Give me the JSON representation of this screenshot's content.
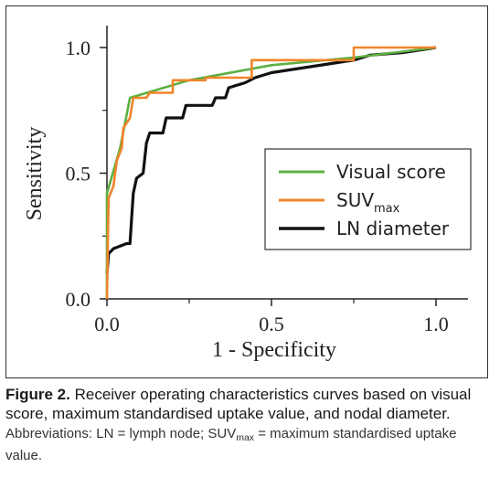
{
  "chart_data": {
    "type": "line",
    "xlabel": "1 - Specificity",
    "ylabel": "Sensitivity",
    "xlim": [
      0.0,
      1.0
    ],
    "ylim": [
      0.0,
      1.0
    ],
    "x_ticks": [
      "0.0",
      "0.5",
      "1.0"
    ],
    "y_ticks": [
      "0.0",
      "0.5",
      "1.0"
    ],
    "grid": false,
    "legend_position": "center-right",
    "series": [
      {
        "name": "Visual score",
        "color": "#5cb043",
        "points": [
          [
            0.0,
            0.0
          ],
          [
            0.0,
            0.42
          ],
          [
            0.04,
            0.6
          ],
          [
            0.07,
            0.8
          ],
          [
            0.25,
            0.87
          ],
          [
            0.5,
            0.93
          ],
          [
            0.75,
            0.96
          ],
          [
            1.0,
            1.0
          ]
        ]
      },
      {
        "name": "SUV",
        "name_sub": "max",
        "color": "#f0842a",
        "points": [
          [
            0.0,
            0.0
          ],
          [
            0.005,
            0.4
          ],
          [
            0.02,
            0.45
          ],
          [
            0.03,
            0.55
          ],
          [
            0.045,
            0.6
          ],
          [
            0.05,
            0.68
          ],
          [
            0.07,
            0.72
          ],
          [
            0.08,
            0.8
          ],
          [
            0.12,
            0.8
          ],
          [
            0.13,
            0.82
          ],
          [
            0.2,
            0.82
          ],
          [
            0.2,
            0.87
          ],
          [
            0.3,
            0.87
          ],
          [
            0.3,
            0.88
          ],
          [
            0.44,
            0.88
          ],
          [
            0.44,
            0.95
          ],
          [
            0.5,
            0.95
          ],
          [
            0.75,
            0.95
          ],
          [
            0.75,
            1.0
          ],
          [
            1.0,
            1.0
          ]
        ]
      },
      {
        "name": "LN diameter",
        "color": "#111111",
        "points": [
          [
            0.0,
            0.1
          ],
          [
            0.005,
            0.18
          ],
          [
            0.02,
            0.2
          ],
          [
            0.06,
            0.22
          ],
          [
            0.07,
            0.22
          ],
          [
            0.08,
            0.42
          ],
          [
            0.09,
            0.48
          ],
          [
            0.11,
            0.5
          ],
          [
            0.12,
            0.62
          ],
          [
            0.13,
            0.66
          ],
          [
            0.17,
            0.66
          ],
          [
            0.18,
            0.72
          ],
          [
            0.23,
            0.72
          ],
          [
            0.24,
            0.77
          ],
          [
            0.32,
            0.77
          ],
          [
            0.33,
            0.8
          ],
          [
            0.36,
            0.8
          ],
          [
            0.37,
            0.84
          ],
          [
            0.42,
            0.86
          ],
          [
            0.45,
            0.88
          ],
          [
            0.5,
            0.9
          ],
          [
            0.6,
            0.92
          ],
          [
            0.7,
            0.94
          ],
          [
            0.75,
            0.95
          ],
          [
            0.8,
            0.97
          ],
          [
            0.9,
            0.98
          ],
          [
            0.95,
            0.99
          ],
          [
            1.0,
            1.0
          ]
        ]
      }
    ]
  },
  "caption": {
    "label": "Figure 2.",
    "text": " Receiver operating characteristics curves based on visual score, maximum standardised uptake value, and nodal diameter.",
    "abbrev_prefix": "Abbreviations: LN = lymph node; SUV",
    "abbrev_sub": "max",
    "abbrev_suffix": " = maximum standardised uptake value."
  }
}
